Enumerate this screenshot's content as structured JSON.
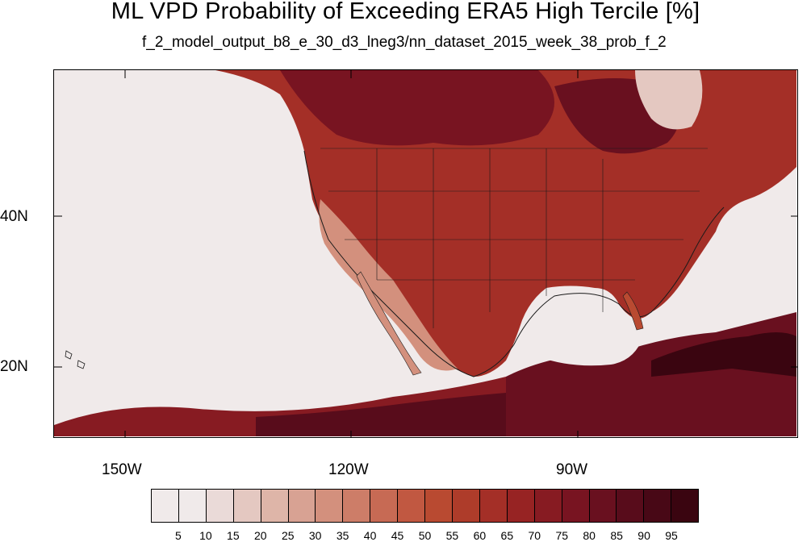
{
  "title": "ML VPD Probability of Exceeding ERA5 High Tercile [%]",
  "subtitle": "f_2_model_output_b8_e_30_d3_lneg3/nn_dataset_2015_week_38_prob_f_2",
  "map": {
    "projection": "cylindrical equidistant",
    "lon_range": [
      -159,
      -60
    ],
    "lat_range": [
      11,
      60
    ],
    "lat_labels": [
      "40N",
      "20N"
    ],
    "lon_labels": [
      "150W",
      "120W",
      "90W"
    ],
    "region": "North America / Eastern Pacific",
    "fill_variable": "probability of exceeding high tercile",
    "units": "%"
  },
  "colorbar": {
    "labels": [
      "5",
      "10",
      "15",
      "20",
      "25",
      "30",
      "35",
      "40",
      "45",
      "50",
      "55",
      "60",
      "65",
      "70",
      "75",
      "80",
      "85",
      "90",
      "95"
    ],
    "colors": [
      "#f0eaea",
      "#eadad8",
      "#e4c8c1",
      "#deb5a8",
      "#d8a293",
      "#d3907d",
      "#cd7d68",
      "#c76a54",
      "#c15841",
      "#b94a31",
      "#ae3c2a",
      "#a42f27",
      "#972323",
      "#871b22",
      "#781421",
      "#69101f",
      "#580c1b",
      "#480816",
      "#3a0510"
    ]
  },
  "description_tags": {
    "ocean_color": "#f0eaea",
    "land_high_color": "#781421",
    "coast_color": "#1a1a1a"
  }
}
